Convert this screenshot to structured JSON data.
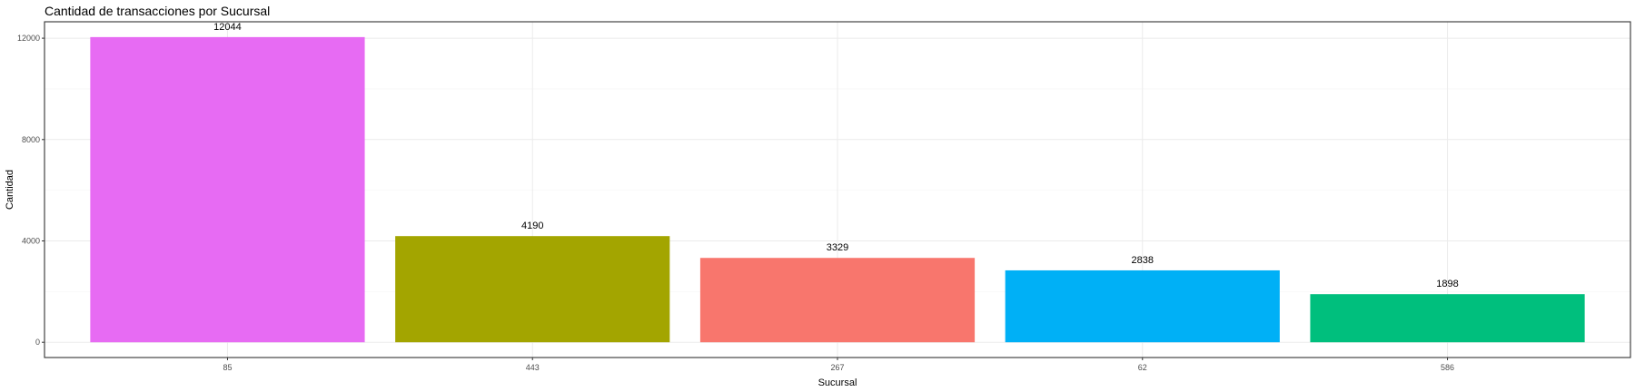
{
  "chart_data": {
    "type": "bar",
    "title": "Cantidad de transacciones por Sucursal",
    "xlabel": "Sucursal",
    "ylabel": "Cantidad",
    "categories": [
      "85",
      "443",
      "267",
      "62",
      "586"
    ],
    "values": [
      12044,
      4190,
      3329,
      2838,
      1898
    ],
    "data_labels": [
      "12044",
      "4190",
      "3329",
      "2838",
      "1898"
    ],
    "colors": [
      "#E76BF3",
      "#A3A500",
      "#F8766D",
      "#00B0F6",
      "#00BF7D"
    ],
    "yticks": [
      0,
      4000,
      8000,
      12000
    ],
    "ytick_labels": [
      "0",
      "4000",
      "8000",
      "12000"
    ],
    "ylim": [
      -602,
      12648
    ],
    "grid": true,
    "legend": "none"
  }
}
